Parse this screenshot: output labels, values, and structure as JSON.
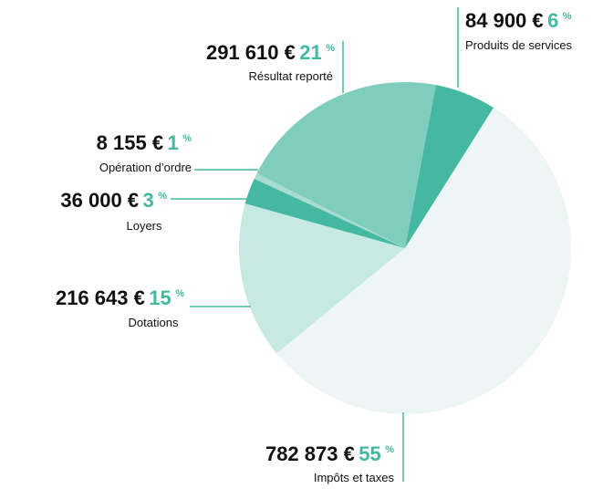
{
  "chart_data": {
    "type": "pie",
    "categories": [
      "Produits de services",
      "Impôts et taxes",
      "Dotations",
      "Loyers",
      "Opération d’ordre",
      "Résultat reporté"
    ],
    "values": [
      84900,
      782873,
      216643,
      36000,
      8155,
      291610
    ],
    "value_labels": [
      "84 900 €",
      "782 873 €",
      "216 643 €",
      "36 000 €",
      "8 155 €",
      "291 610 €"
    ],
    "percents": [
      6,
      55,
      15,
      3,
      1,
      21
    ],
    "percent_sign": "%",
    "colors": [
      "#45b8a2",
      "#edf6f4",
      "#c6e9e1",
      "#45b8a2",
      "#a8dcd1",
      "#7fcdbd"
    ]
  }
}
